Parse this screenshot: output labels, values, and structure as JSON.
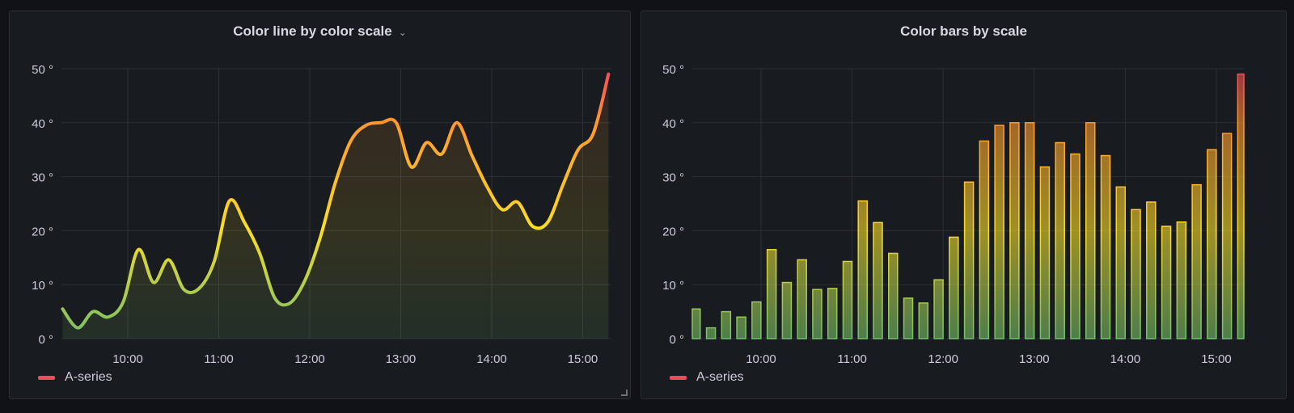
{
  "panels": [
    {
      "title": "Color line by color scale",
      "menu_icon": "chevron-down-icon",
      "legend": "A-series"
    },
    {
      "title": "Color bars by scale",
      "legend": "A-series"
    }
  ],
  "colors": {
    "background": "#111217",
    "panel": "#181b1f",
    "legend_swatch": "#f2495c",
    "scale": [
      {
        "value": 0,
        "color": "#73bf69"
      },
      {
        "value": 20,
        "color": "#fade2a"
      },
      {
        "value": 40,
        "color": "#ff9830"
      },
      {
        "value": 50,
        "color": "#f2495c"
      }
    ]
  },
  "chart_data": [
    {
      "type": "line",
      "title": "Color line by color scale",
      "x": [
        "09:17",
        "09:27",
        "09:37",
        "09:47",
        "09:57",
        "10:07",
        "10:17",
        "10:27",
        "10:37",
        "10:47",
        "10:57",
        "11:07",
        "11:17",
        "11:27",
        "11:37",
        "11:47",
        "11:57",
        "12:07",
        "12:17",
        "12:27",
        "12:37",
        "12:47",
        "12:57",
        "13:07",
        "13:17",
        "13:27",
        "13:37",
        "13:47",
        "13:57",
        "14:07",
        "14:17",
        "14:27",
        "14:37",
        "14:47",
        "14:57",
        "15:07",
        "15:17"
      ],
      "series": [
        {
          "name": "A-series",
          "values": [
            5.5,
            2,
            5,
            4,
            6.8,
            16.5,
            10.4,
            14.6,
            9.1,
            9.3,
            14.3,
            25.5,
            21.5,
            15.8,
            7.5,
            6.6,
            10.9,
            18.8,
            29,
            36.6,
            39.5,
            40,
            40,
            31.8,
            36.3,
            34.2,
            40,
            33.9,
            28.1,
            23.9,
            25.3,
            20.8,
            21.6,
            28.5,
            35,
            38,
            49
          ]
        }
      ],
      "xticks": [
        "10:00",
        "11:00",
        "12:00",
        "13:00",
        "14:00",
        "15:00"
      ],
      "yticks": [
        "0 °",
        "10 °",
        "20 °",
        "30 °",
        "40 °",
        "50 °"
      ],
      "ylim": [
        0,
        50
      ],
      "grid": true,
      "legend": "bottom-left"
    },
    {
      "type": "bar",
      "title": "Color bars by scale",
      "x": [
        "09:17",
        "09:27",
        "09:37",
        "09:47",
        "09:57",
        "10:07",
        "10:17",
        "10:27",
        "10:37",
        "10:47",
        "10:57",
        "11:07",
        "11:17",
        "11:27",
        "11:37",
        "11:47",
        "11:57",
        "12:07",
        "12:17",
        "12:27",
        "12:37",
        "12:47",
        "12:57",
        "13:07",
        "13:17",
        "13:27",
        "13:37",
        "13:47",
        "13:57",
        "14:07",
        "14:17",
        "14:27",
        "14:37",
        "14:47",
        "14:57",
        "15:07",
        "15:17"
      ],
      "series": [
        {
          "name": "A-series",
          "values": [
            5.5,
            2,
            5,
            4,
            6.8,
            16.5,
            10.4,
            14.6,
            9.1,
            9.3,
            14.3,
            25.5,
            21.5,
            15.8,
            7.5,
            6.6,
            10.9,
            18.8,
            29,
            36.6,
            39.5,
            40,
            40,
            31.8,
            36.3,
            34.2,
            40,
            33.9,
            28.1,
            23.9,
            25.3,
            20.8,
            21.6,
            28.5,
            35,
            38,
            49
          ]
        }
      ],
      "xticks": [
        "10:00",
        "11:00",
        "12:00",
        "13:00",
        "14:00",
        "15:00"
      ],
      "yticks": [
        "0 °",
        "10 °",
        "20 °",
        "30 °",
        "40 °",
        "50 °"
      ],
      "ylim": [
        0,
        50
      ],
      "grid": true,
      "legend": "bottom-left"
    }
  ]
}
